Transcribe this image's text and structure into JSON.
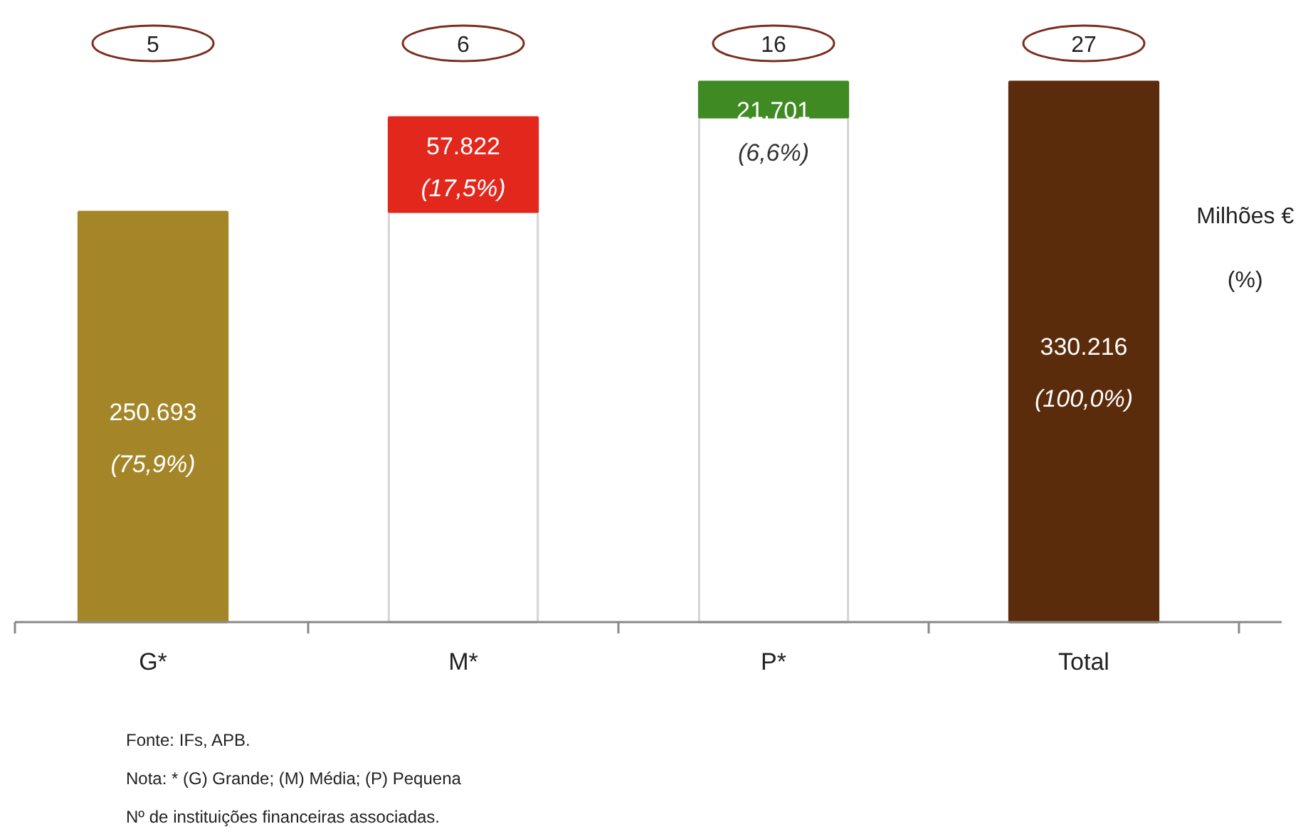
{
  "chart_data": {
    "type": "bar",
    "stacked": true,
    "categories": [
      "G*",
      "M*",
      "P*",
      "Total"
    ],
    "series": [
      {
        "color": "#ffffff",
        "values": [
          null,
          250693,
          308515,
          null
        ]
      },
      {
        "colors": [
          "#a48628",
          "#e2281c",
          "#3f8a22",
          "#5b2c0c"
        ],
        "values": [
          250693,
          57822,
          21701,
          330216
        ],
        "value_labels": [
          "250.693",
          "57.822",
          "21.701",
          "330.216"
        ]
      }
    ],
    "annotations": [
      "Milhões €",
      "(%)",
      "Fonte: IFs, APB.",
      "Nota: * (G) Grande; (M) Média; (P) Pequena",
      "Nº de instituições financeiras associadas.",
      "(75,9%)",
      "(17,5%)",
      "(6,6%)",
      "(100,0%)",
      "5",
      "6",
      "16",
      "27"
    ],
    "grid": false
  }
}
